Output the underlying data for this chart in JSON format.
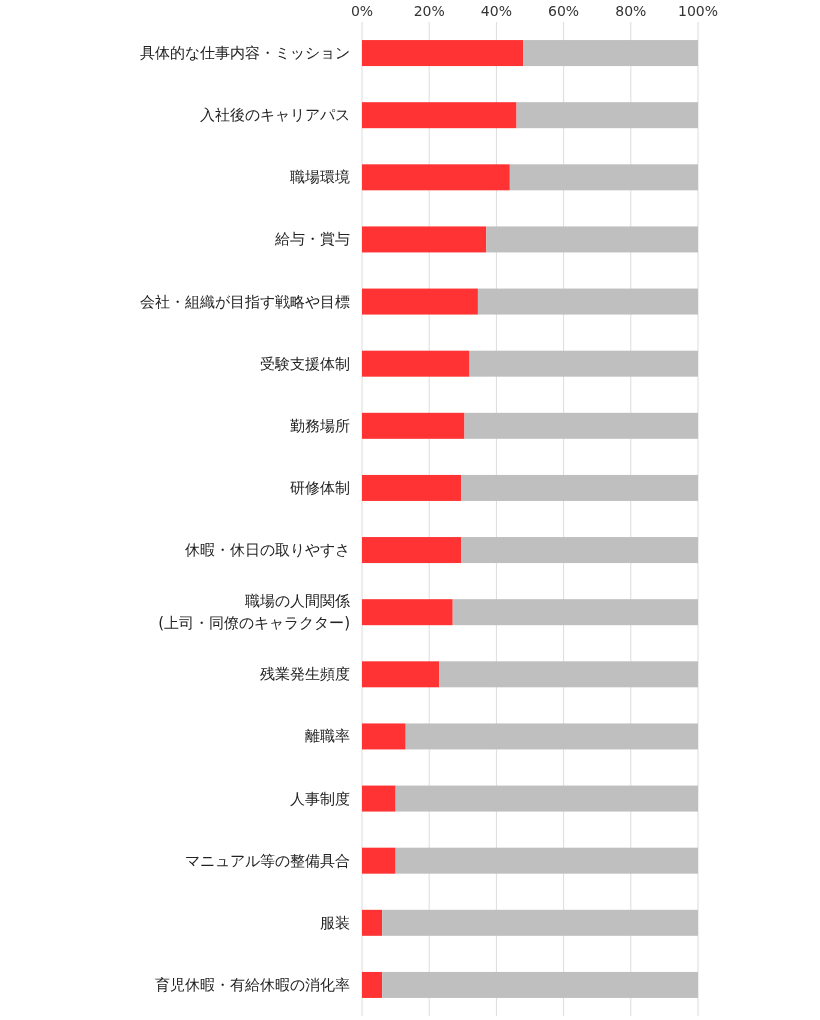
{
  "chart_data": {
    "type": "bar",
    "orientation": "horizontal",
    "stacked": true,
    "categories": [
      "具体的な仕事内容・ミッション",
      "入社後のキャリアパス",
      "職場環境",
      "給与・賞与",
      "会社・組織が目指す戦略や目標",
      "受験支援体制",
      "勤務場所",
      "研修体制",
      "休暇・休日の取りやすさ",
      "職場の人間関係\n(上司・同僚のキャラクター)",
      "残業発生頻度",
      "離職率",
      "人事制度",
      "マニュアル等の整備具合",
      "服装",
      "育児休暇・有給休暇の消化率"
    ],
    "series": [
      {
        "color": "#ff3333",
        "values": [
          48,
          46,
          44,
          37,
          34.5,
          32,
          30.5,
          29.5,
          29.5,
          27,
          23,
          13,
          10,
          10,
          6,
          6
        ]
      },
      {
        "color": "#bfbfbf",
        "values": [
          52,
          54,
          56,
          63,
          65.5,
          68,
          69.5,
          70.5,
          70.5,
          73,
          77,
          87,
          90,
          90,
          94,
          94
        ]
      }
    ],
    "xlim": [
      0,
      100
    ],
    "xticks": [
      {
        "value": 0,
        "label": "0%"
      },
      {
        "value": 20,
        "label": "20%"
      },
      {
        "value": 40,
        "label": "40%"
      },
      {
        "value": 60,
        "label": "60%"
      },
      {
        "value": 80,
        "label": "80%"
      },
      {
        "value": 100,
        "label": "100%"
      }
    ],
    "grid": "x"
  }
}
